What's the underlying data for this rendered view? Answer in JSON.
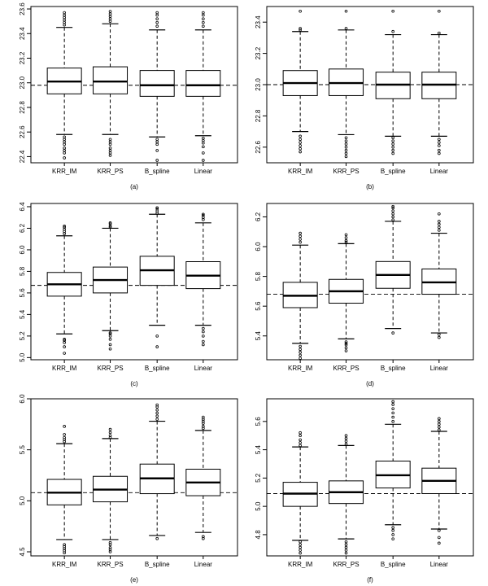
{
  "chart_data": [
    {
      "type": "box",
      "panel_label": "(a)",
      "categories": [
        "KRR_IM",
        "KRR_PS",
        "B_spline",
        "Linear"
      ],
      "y_ticks": [
        22.4,
        22.6,
        22.8,
        23.0,
        23.2,
        23.4,
        23.6
      ],
      "ylim": [
        22.35,
        23.62
      ],
      "reference_line": 22.98,
      "boxes": [
        {
          "whisker_low": 22.58,
          "q1": 22.91,
          "median": 23.01,
          "q3": 23.12,
          "whisker_high": 23.45,
          "outliers": [
            22.39,
            22.43,
            22.45,
            22.47,
            22.5,
            22.52,
            22.54,
            22.56,
            23.47,
            23.49,
            23.51,
            23.53,
            23.55,
            23.57
          ]
        },
        {
          "whisker_low": 22.58,
          "q1": 22.91,
          "median": 23.01,
          "q3": 23.13,
          "whisker_high": 23.48,
          "outliers": [
            22.41,
            22.43,
            22.45,
            22.47,
            22.5,
            22.52,
            22.54,
            23.5,
            23.52,
            23.54,
            23.56,
            23.58
          ]
        },
        {
          "whisker_low": 22.56,
          "q1": 22.89,
          "median": 22.98,
          "q3": 23.1,
          "whisker_high": 23.43,
          "outliers": [
            22.37,
            22.45,
            22.5,
            22.52,
            22.54,
            23.46,
            23.49,
            23.52,
            23.55,
            23.57
          ]
        },
        {
          "whisker_low": 22.57,
          "q1": 22.89,
          "median": 22.98,
          "q3": 23.1,
          "whisker_high": 23.43,
          "outliers": [
            22.37,
            22.43,
            22.48,
            22.51,
            22.53,
            22.55,
            23.46,
            23.49,
            23.52,
            23.55,
            23.57
          ]
        }
      ]
    },
    {
      "type": "box",
      "panel_label": "(b)",
      "categories": [
        "KRR_IM",
        "KRR_PS",
        "B_spline",
        "Linear"
      ],
      "y_ticks": [
        22.6,
        22.8,
        23.0,
        23.2,
        23.4
      ],
      "ylim": [
        22.5,
        23.5
      ],
      "reference_line": 23.0,
      "boxes": [
        {
          "whisker_low": 22.7,
          "q1": 22.93,
          "median": 23.01,
          "q3": 23.09,
          "whisker_high": 23.34,
          "outliers": [
            22.57,
            22.59,
            22.61,
            22.63,
            22.65,
            22.67,
            23.35,
            23.36,
            23.47
          ]
        },
        {
          "whisker_low": 22.68,
          "q1": 22.93,
          "median": 23.01,
          "q3": 23.1,
          "whisker_high": 23.35,
          "outliers": [
            22.54,
            22.56,
            22.58,
            22.6,
            22.62,
            22.64,
            22.66,
            23.36,
            23.47
          ]
        },
        {
          "whisker_low": 22.67,
          "q1": 22.91,
          "median": 23.0,
          "q3": 23.08,
          "whisker_high": 23.32,
          "outliers": [
            22.56,
            22.58,
            22.6,
            22.62,
            22.64,
            22.66,
            23.34,
            23.47
          ]
        },
        {
          "whisker_low": 22.67,
          "q1": 22.91,
          "median": 23.0,
          "q3": 23.08,
          "whisker_high": 23.32,
          "outliers": [
            22.56,
            22.58,
            22.61,
            22.63,
            22.65,
            23.33,
            23.47
          ]
        }
      ]
    },
    {
      "type": "box",
      "panel_label": "(c)",
      "categories": [
        "KRR_IM",
        "KRR_PS",
        "B_spline",
        "Linear"
      ],
      "y_ticks": [
        5.0,
        5.2,
        5.4,
        5.6,
        5.8,
        6.0,
        6.2,
        6.4
      ],
      "ylim": [
        4.98,
        6.43
      ],
      "reference_line": 5.67,
      "boxes": [
        {
          "whisker_low": 5.22,
          "q1": 5.57,
          "median": 5.68,
          "q3": 5.79,
          "whisker_high": 6.13,
          "outliers": [
            5.04,
            5.1,
            5.14,
            5.16,
            5.17,
            6.15,
            6.17,
            6.19,
            6.21,
            6.22
          ]
        },
        {
          "whisker_low": 5.25,
          "q1": 5.6,
          "median": 5.72,
          "q3": 5.84,
          "whisker_high": 6.2,
          "outliers": [
            5.08,
            5.12,
            5.17,
            5.2,
            5.22,
            5.23,
            6.21,
            6.22,
            6.24,
            6.25
          ]
        },
        {
          "whisker_low": 5.3,
          "q1": 5.67,
          "median": 5.81,
          "q3": 5.94,
          "whisker_high": 6.33,
          "outliers": [
            5.1,
            5.2,
            6.34,
            6.36,
            6.38,
            6.39
          ]
        },
        {
          "whisker_low": 5.3,
          "q1": 5.64,
          "median": 5.76,
          "q3": 5.89,
          "whisker_high": 6.25,
          "outliers": [
            5.12,
            5.15,
            5.2,
            5.24,
            5.27,
            6.28,
            6.3,
            6.32,
            6.33
          ]
        }
      ]
    },
    {
      "type": "box",
      "panel_label": "(d)",
      "categories": [
        "KRR_IM",
        "KRR_PS",
        "B_spline",
        "Linear"
      ],
      "y_ticks": [
        5.4,
        5.6,
        5.8,
        6.0,
        6.2
      ],
      "ylim": [
        5.24,
        6.29
      ],
      "reference_line": 5.68,
      "boxes": [
        {
          "whisker_low": 5.35,
          "q1": 5.59,
          "median": 5.67,
          "q3": 5.76,
          "whisker_high": 6.01,
          "outliers": [
            5.25,
            5.27,
            5.29,
            5.31,
            5.33,
            6.03,
            6.05,
            6.07,
            6.09
          ]
        },
        {
          "whisker_low": 5.38,
          "q1": 5.62,
          "median": 5.7,
          "q3": 5.78,
          "whisker_high": 6.02,
          "outliers": [
            5.3,
            5.32,
            5.34,
            5.35,
            5.36,
            6.03,
            6.04,
            6.06,
            6.08
          ]
        },
        {
          "whisker_low": 5.45,
          "q1": 5.72,
          "median": 5.81,
          "q3": 5.9,
          "whisker_high": 6.17,
          "outliers": [
            5.42,
            6.18,
            6.2,
            6.22,
            6.24,
            6.26,
            6.27
          ]
        },
        {
          "whisker_low": 5.42,
          "q1": 5.68,
          "median": 5.76,
          "q3": 5.85,
          "whisker_high": 6.09,
          "outliers": [
            5.39,
            5.41,
            6.11,
            6.13,
            6.15,
            6.17,
            6.22
          ]
        }
      ]
    },
    {
      "type": "box",
      "panel_label": "(e)",
      "categories": [
        "KRR_IM",
        "KRR_PS",
        "B_spline",
        "Linear"
      ],
      "y_ticks": [
        4.5,
        5.0,
        5.5,
        6.0
      ],
      "ylim": [
        4.46,
        6.0
      ],
      "reference_line": 5.08,
      "boxes": [
        {
          "whisker_low": 4.62,
          "q1": 4.96,
          "median": 5.08,
          "q3": 5.21,
          "whisker_high": 5.56,
          "outliers": [
            4.49,
            4.51,
            4.53,
            4.55,
            4.57,
            5.58,
            5.6,
            5.62,
            5.65,
            5.73
          ]
        },
        {
          "whisker_low": 4.62,
          "q1": 4.99,
          "median": 5.11,
          "q3": 5.24,
          "whisker_high": 5.61,
          "outliers": [
            4.5,
            4.52,
            4.54,
            4.57,
            4.59,
            5.62,
            5.64,
            5.67,
            5.7
          ]
        },
        {
          "whisker_low": 4.66,
          "q1": 5.07,
          "median": 5.22,
          "q3": 5.36,
          "whisker_high": 5.78,
          "outliers": [
            4.63,
            5.8,
            5.83,
            5.86,
            5.89,
            5.92,
            5.94
          ]
        },
        {
          "whisker_low": 4.69,
          "q1": 5.05,
          "median": 5.18,
          "q3": 5.31,
          "whisker_high": 5.69,
          "outliers": [
            4.63,
            4.65,
            5.71,
            5.73,
            5.76,
            5.78,
            5.8,
            5.82
          ]
        }
      ]
    },
    {
      "type": "box",
      "panel_label": "(f)",
      "categories": [
        "KRR_IM",
        "KRR_PS",
        "B_spline",
        "Linear"
      ],
      "y_ticks": [
        4.8,
        5.0,
        5.2,
        5.4,
        5.6
      ],
      "ylim": [
        4.65,
        5.76
      ],
      "reference_line": 5.09,
      "boxes": [
        {
          "whisker_low": 4.76,
          "q1": 5.0,
          "median": 5.09,
          "q3": 5.17,
          "whisker_high": 5.42,
          "outliers": [
            4.67,
            4.69,
            4.71,
            4.73,
            4.75,
            5.43,
            5.45,
            5.47,
            5.5,
            5.52
          ]
        },
        {
          "whisker_low": 4.77,
          "q1": 5.02,
          "median": 5.1,
          "q3": 5.18,
          "whisker_high": 5.43,
          "outliers": [
            4.67,
            4.69,
            4.71,
            4.73,
            4.75,
            5.44,
            5.46,
            5.48,
            5.5
          ]
        },
        {
          "whisker_low": 4.87,
          "q1": 5.13,
          "median": 5.22,
          "q3": 5.32,
          "whisker_high": 5.58,
          "outliers": [
            4.77,
            4.8,
            4.83,
            4.85,
            5.6,
            5.63,
            5.66,
            5.69,
            5.72,
            5.74
          ]
        },
        {
          "whisker_low": 4.84,
          "q1": 5.09,
          "median": 5.18,
          "q3": 5.27,
          "whisker_high": 5.53,
          "outliers": [
            4.74,
            4.78,
            4.83,
            5.54,
            5.56,
            5.58,
            5.6,
            5.62
          ]
        }
      ]
    }
  ]
}
